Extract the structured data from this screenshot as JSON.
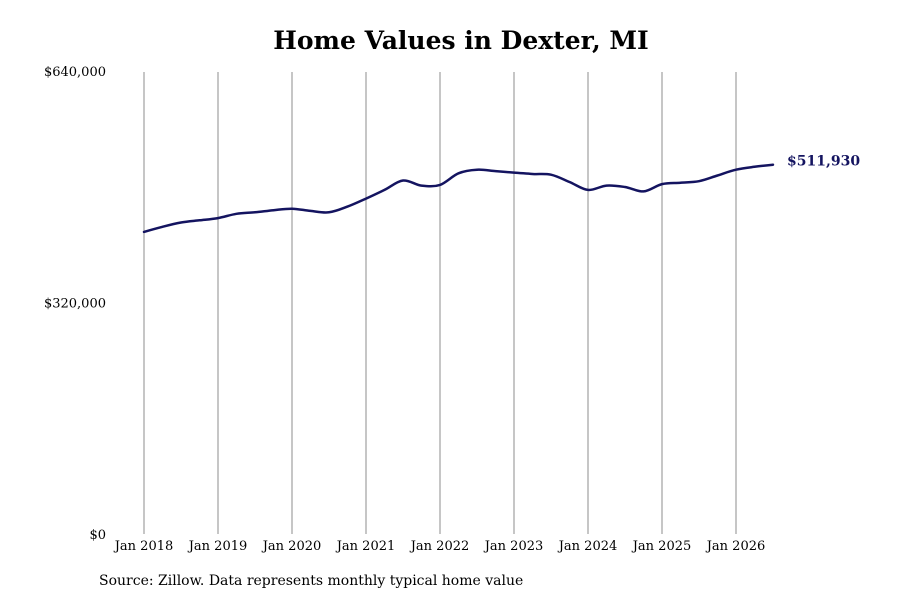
{
  "source_note": "Source: Zillow. Data represents monthly typical home value",
  "colors": {
    "line": "#141460",
    "grid": "#8c8c8c",
    "text": "#000000"
  },
  "chart_data": {
    "type": "line",
    "title": "Home Values in Dexter, MI",
    "xlabel": "",
    "ylabel": "",
    "x_range": [
      "2018-01",
      "2026-07"
    ],
    "ylim": [
      0,
      640000
    ],
    "y_ticks": [
      {
        "value": 0,
        "label": "$0"
      },
      {
        "value": 320000,
        "label": "$320,000"
      },
      {
        "value": 640000,
        "label": "$640,000"
      }
    ],
    "x_ticks": [
      {
        "date": "2018-01",
        "label": "Jan 2018"
      },
      {
        "date": "2019-01",
        "label": "Jan 2019"
      },
      {
        "date": "2020-01",
        "label": "Jan 2020"
      },
      {
        "date": "2021-01",
        "label": "Jan 2021"
      },
      {
        "date": "2022-01",
        "label": "Jan 2022"
      },
      {
        "date": "2023-01",
        "label": "Jan 2023"
      },
      {
        "date": "2024-01",
        "label": "Jan 2024"
      },
      {
        "date": "2025-01",
        "label": "Jan 2025"
      },
      {
        "date": "2026-01",
        "label": "Jan 2026"
      }
    ],
    "grid": {
      "vertical": true,
      "horizontal": false
    },
    "end_label": "$511,930",
    "series": [
      {
        "points": [
          [
            "2018-01",
            419000
          ],
          [
            "2018-04",
            426000
          ],
          [
            "2018-07",
            432000
          ],
          [
            "2018-10",
            435000
          ],
          [
            "2019-01",
            438000
          ],
          [
            "2019-04",
            444000
          ],
          [
            "2019-07",
            446000
          ],
          [
            "2019-10",
            449000
          ],
          [
            "2020-01",
            451000
          ],
          [
            "2020-04",
            448000
          ],
          [
            "2020-07",
            446000
          ],
          [
            "2020-10",
            454000
          ],
          [
            "2021-01",
            465000
          ],
          [
            "2021-04",
            477000
          ],
          [
            "2021-07",
            490000
          ],
          [
            "2021-10",
            483000
          ],
          [
            "2022-01",
            484000
          ],
          [
            "2022-04",
            500000
          ],
          [
            "2022-07",
            505000
          ],
          [
            "2022-10",
            503000
          ],
          [
            "2023-01",
            501000
          ],
          [
            "2023-04",
            499000
          ],
          [
            "2023-07",
            498000
          ],
          [
            "2023-10",
            488000
          ],
          [
            "2024-01",
            477000
          ],
          [
            "2024-04",
            483000
          ],
          [
            "2024-07",
            481000
          ],
          [
            "2024-10",
            475000
          ],
          [
            "2025-01",
            485000
          ],
          [
            "2025-04",
            487000
          ],
          [
            "2025-07",
            489000
          ],
          [
            "2025-10",
            497000
          ],
          [
            "2026-01",
            505000
          ],
          [
            "2026-04",
            509000
          ],
          [
            "2026-07",
            511930
          ]
        ]
      }
    ]
  }
}
